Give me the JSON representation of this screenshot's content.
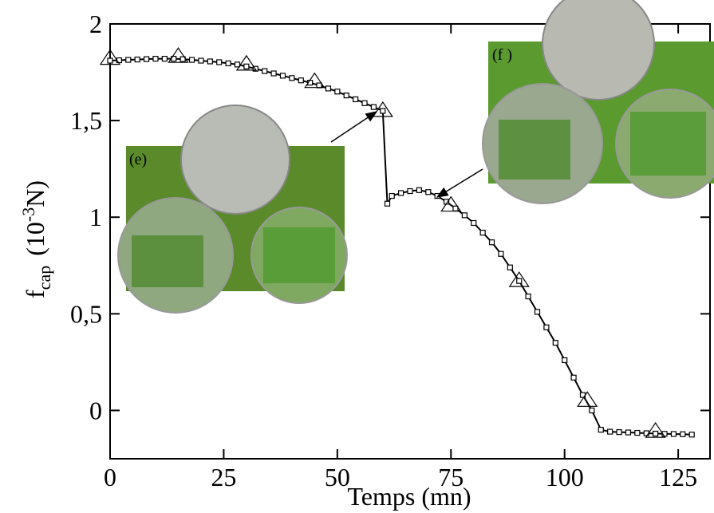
{
  "chart_data": {
    "type": "line",
    "x_label": "Temps (mn)",
    "y_label": {
      "main": "f",
      "sub": "cap",
      "unit": "(10",
      "sup": "-3",
      "end": "N)"
    },
    "annotations": [
      "(e)",
      "(f )"
    ],
    "xlim": [
      0,
      132
    ],
    "ylim": [
      -0.25,
      2
    ],
    "xticks": [
      0,
      25,
      50,
      75,
      100,
      125
    ],
    "yticks": [
      0,
      {
        "value": 0.5,
        "label": "0,5"
      },
      1,
      {
        "value": 1.5,
        "label": "1,5"
      },
      2
    ],
    "series": [
      {
        "marker": "square",
        "color": "#000000",
        "x": [
          0,
          2,
          4,
          6,
          8,
          10,
          12,
          14,
          16,
          18,
          20,
          22,
          24,
          26,
          28,
          30,
          32,
          34,
          36,
          38,
          40,
          42,
          44,
          46,
          48,
          50,
          52,
          54,
          56,
          58,
          60,
          61,
          62,
          64,
          66,
          68,
          70,
          72,
          74,
          76,
          78,
          80,
          82,
          84,
          86,
          88,
          90,
          92,
          94,
          96,
          98,
          100,
          102,
          104,
          106,
          108,
          110,
          112,
          114,
          116,
          118,
          120,
          122,
          124,
          126,
          128
        ],
        "values": [
          1.81,
          1.812,
          1.814,
          1.816,
          1.818,
          1.82,
          1.82,
          1.82,
          1.818,
          1.814,
          1.81,
          1.806,
          1.802,
          1.796,
          1.79,
          1.78,
          1.768,
          1.756,
          1.744,
          1.732,
          1.72,
          1.708,
          1.696,
          1.682,
          1.666,
          1.65,
          1.63,
          1.61,
          1.59,
          1.57,
          1.55,
          1.07,
          1.11,
          1.125,
          1.135,
          1.14,
          1.13,
          1.11,
          1.08,
          1.045,
          1.01,
          0.97,
          0.92,
          0.87,
          0.81,
          0.74,
          0.67,
          0.59,
          0.51,
          0.43,
          0.35,
          0.26,
          0.17,
          0.08,
          0.0,
          -0.1,
          -0.11,
          -0.112,
          -0.114,
          -0.116,
          -0.118,
          -0.12,
          -0.121,
          -0.122,
          -0.123,
          -0.125
        ]
      },
      {
        "marker": "triangle",
        "color": "#000000",
        "x": [
          0,
          15,
          30,
          45,
          60,
          75,
          90,
          105,
          120
        ],
        "values": [
          1.82,
          1.83,
          1.79,
          1.7,
          1.55,
          1.06,
          0.67,
          0.05,
          -0.11
        ]
      }
    ]
  }
}
